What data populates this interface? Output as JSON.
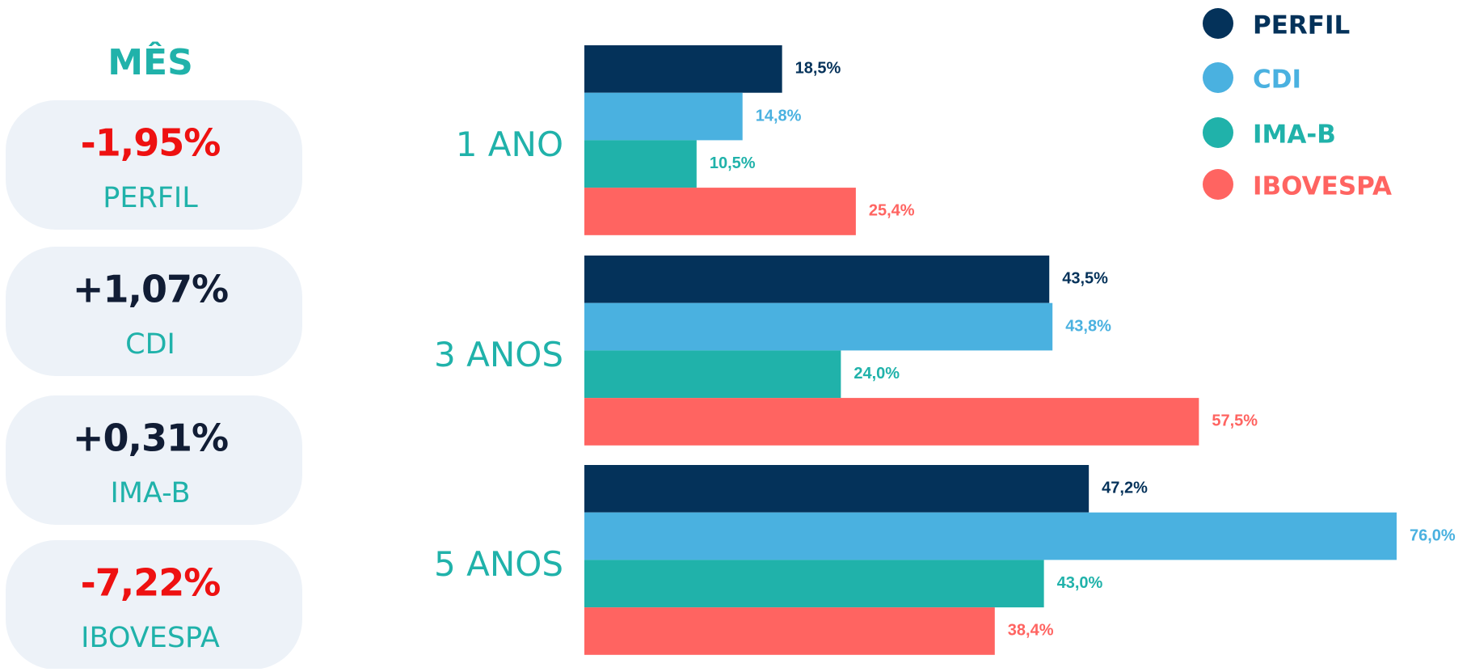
{
  "month": {
    "title": "MÊS",
    "items": [
      {
        "value": "-1,95%",
        "label": "PERFIL",
        "color": "#ee1111"
      },
      {
        "value": "+1,07%",
        "label": "CDI",
        "color": "#111d35"
      },
      {
        "value": "+0,31%",
        "label": "IMA-B",
        "color": "#111d35"
      },
      {
        "value": "-7,22%",
        "label": "IBOVESPA",
        "color": "#ee1111"
      }
    ]
  },
  "chart_data": {
    "type": "bar",
    "orientation": "horizontal",
    "categories": [
      "1 ANO",
      "3 ANOS",
      "5 ANOS"
    ],
    "series": [
      {
        "name": "PERFIL",
        "color": "#04325a",
        "values": [
          18.5,
          43.5,
          47.2
        ],
        "value_labels": [
          "18,5%",
          "43,5%",
          "47,2%"
        ]
      },
      {
        "name": "CDI",
        "color": "#4ab1e0",
        "values": [
          14.8,
          43.8,
          76.0
        ],
        "value_labels": [
          "14,8%",
          "43,8%",
          "76,0%"
        ]
      },
      {
        "name": "IMA-B",
        "color": "#20b2aa",
        "values": [
          10.5,
          24.0,
          43.0
        ],
        "value_labels": [
          "10,5%",
          "24,0%",
          "43,0%"
        ]
      },
      {
        "name": "IBOVESPA",
        "color": "#ff6461",
        "values": [
          25.4,
          57.5,
          38.4
        ],
        "value_labels": [
          "25,4%",
          "57,5%",
          "38,4%"
        ]
      }
    ],
    "legend": "top-right"
  }
}
